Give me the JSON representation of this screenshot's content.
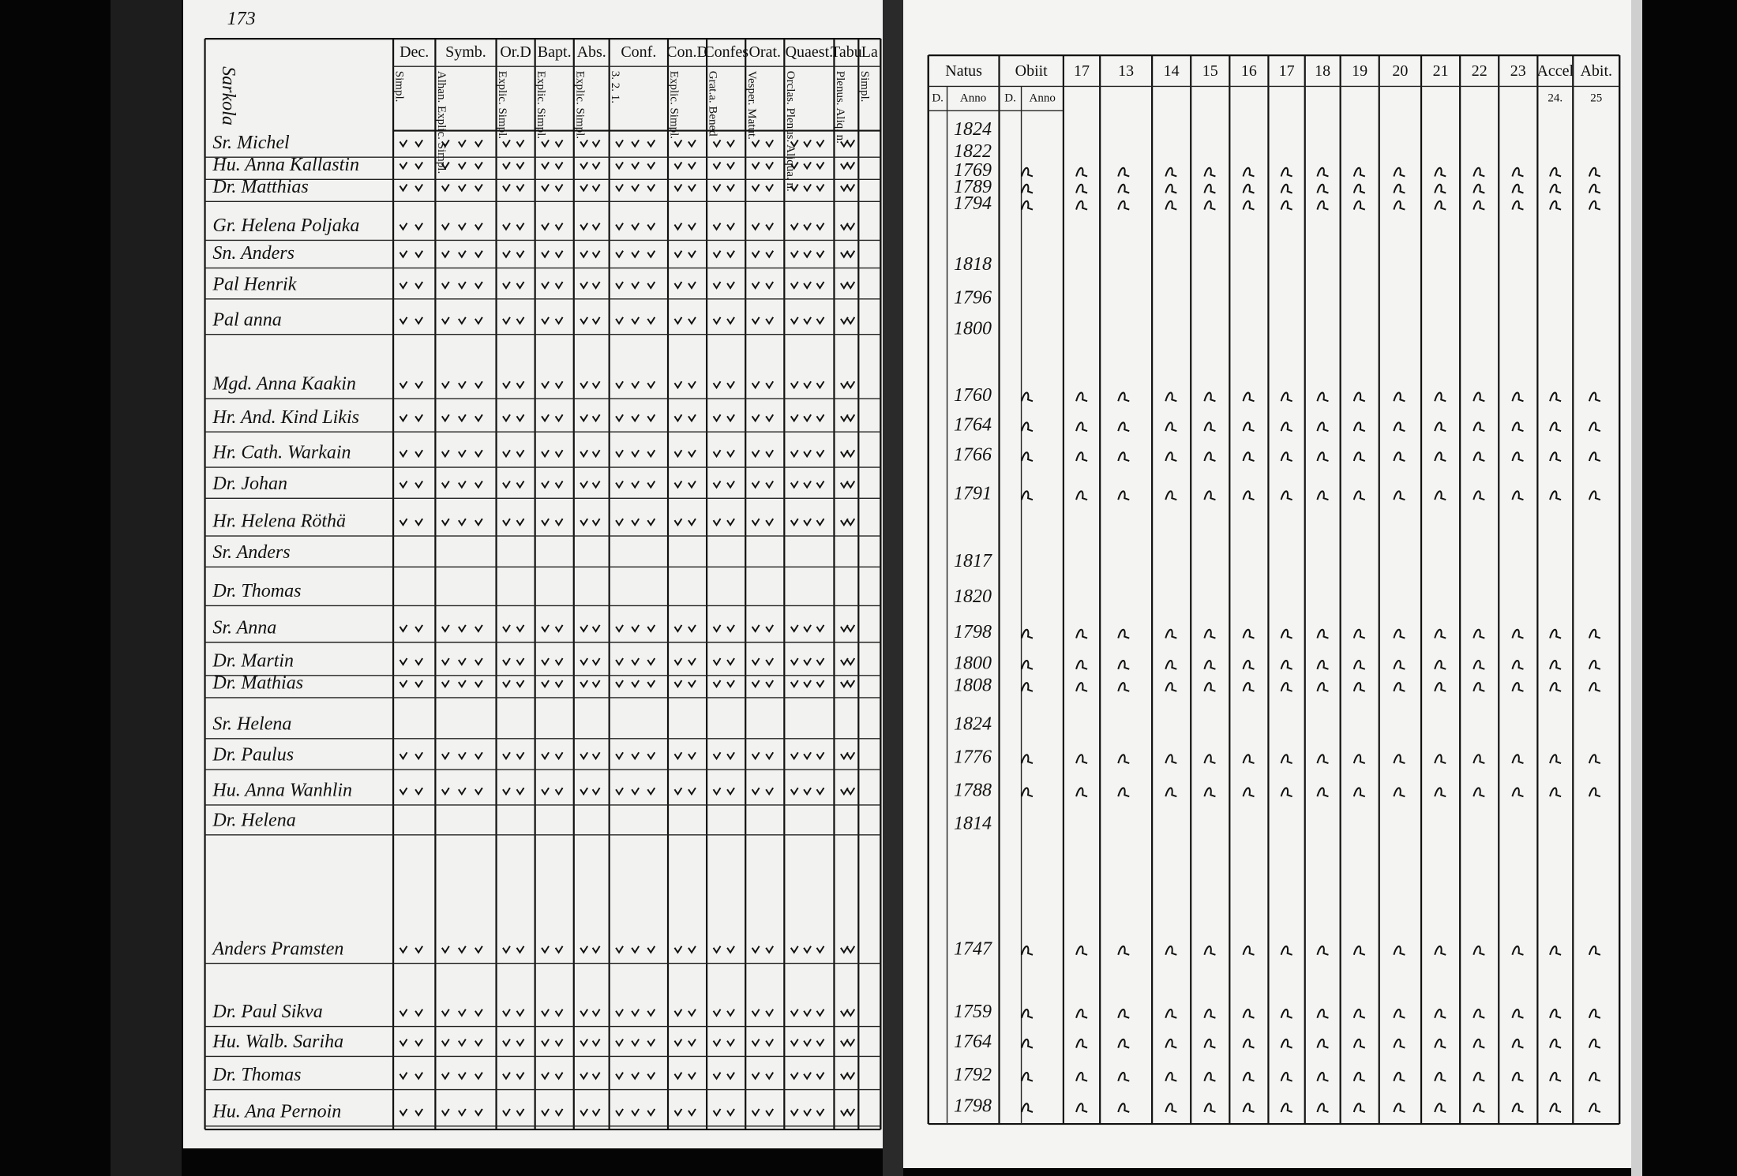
{
  "left_page": {
    "page_number": "173",
    "village": "Sarkola",
    "headers": [
      {
        "name": "Dec.",
        "sub": "Simpl."
      },
      {
        "name": "Symb.",
        "sub": "Alhan. Explic. Simpl."
      },
      {
        "name": "Or.D",
        "sub": "Explic. Simpl."
      },
      {
        "name": "Bapt.",
        "sub": "Explic. Simpl."
      },
      {
        "name": "Abs.",
        "sub": "Explic. Simpl."
      },
      {
        "name": "Conf.",
        "sub": "3. 2. 1."
      },
      {
        "name": "Con.D",
        "sub": "Explic. Simpl."
      },
      {
        "name": "Confes",
        "sub": "Grat.a. Bened"
      },
      {
        "name": "Orat.",
        "sub": "Vesper. Matut."
      },
      {
        "name": "Quaest.",
        "sub": "Orclas. Plenus. Aliqua. n."
      },
      {
        "name": "Tabu",
        "sub": "Plenus. Aliq. n."
      },
      {
        "name": "La",
        "sub": "Simpl."
      }
    ],
    "names": [
      "Sr. Michel",
      "Hu. Anna Kallastin",
      "Dr. Matthias",
      "Gr. Helena Poljaka",
      "Sn. Anders",
      "Pal Henrik",
      "Pal anna",
      "Mgd. Anna Kaakin",
      "Hr. And. Kind Likis",
      "Hr. Cath. Warkain",
      "Dr. Johan",
      "Hr. Helena Röthä",
      "Sr. Anders",
      "Dr. Thomas",
      "Sr. Anna",
      "Dr. Martin",
      "Dr. Mathias",
      "Sr. Helena",
      "Dr. Paulus",
      "Hu. Anna Wanhlin",
      "Dr. Helena",
      "Anders Pramsten",
      "Dr. Paul Sikva",
      "Hu. Walb. Sariha",
      "Dr. Thomas",
      "Hu. Ana Pernoin"
    ]
  },
  "right_page": {
    "headers": [
      {
        "name": "Natus",
        "subs": [
          "D.",
          "Anno"
        ]
      },
      {
        "name": "Obiit",
        "subs": [
          "D.",
          "Anno"
        ]
      },
      {
        "name": "17"
      },
      {
        "name": "13"
      },
      {
        "name": "14"
      },
      {
        "name": "15"
      },
      {
        "name": "16"
      },
      {
        "name": "17"
      },
      {
        "name": "18"
      },
      {
        "name": "19"
      },
      {
        "name": "20"
      },
      {
        "name": "21"
      },
      {
        "name": "22"
      },
      {
        "name": "23"
      },
      {
        "name": "Accel",
        "subs": [
          "24."
        ]
      },
      {
        "name": "Abit.",
        "subs": [
          "25"
        ]
      }
    ],
    "born": [
      "1824",
      "1822",
      "1769",
      "1789",
      "1794",
      "1818",
      "1796",
      "1800",
      "1760",
      "1764",
      "1766",
      "1791",
      "1817",
      "1820",
      "1798",
      "1800",
      "1808",
      "1824",
      "1776",
      "1788",
      "1814",
      "1747",
      "1759",
      "1764",
      "1792",
      "1798"
    ]
  }
}
